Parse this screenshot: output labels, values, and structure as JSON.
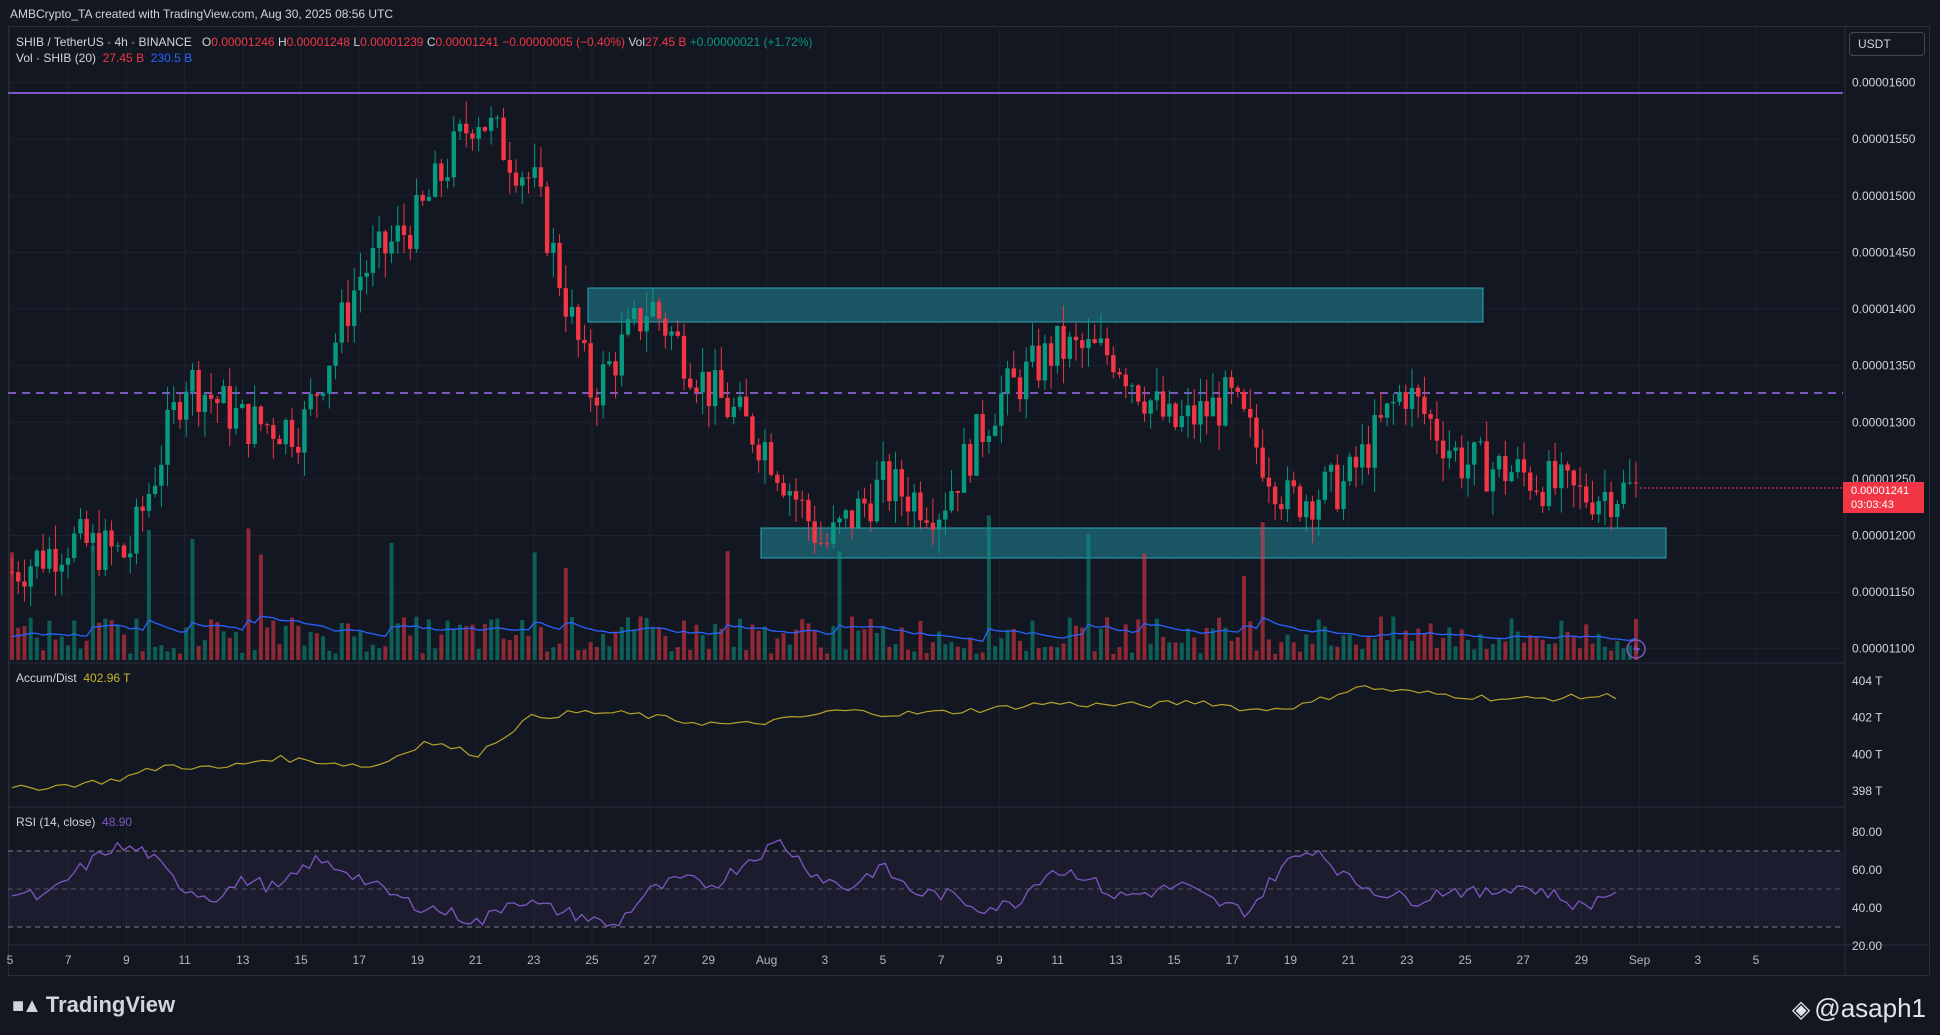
{
  "header": {
    "created_by": "AMBCrypto_TA created with TradingView.com, Aug 30, 2025 08:56 UTC"
  },
  "symbol": {
    "title": "SHIB / TetherUS · 4h · BINANCE",
    "o_label": "O",
    "o_value": "0.00001246",
    "h_label": "H",
    "h_value": "0.00001248",
    "l_label": "L",
    "l_value": "0.00001239",
    "c_label": "C",
    "c_value": "0.00001241",
    "change": "−0.00000005 (−0.40%)",
    "vol_label": "Vol",
    "vol_value": "27.45 B",
    "vol_change": "+0.00000021 (+1.72%)"
  },
  "volume_legend": {
    "label": "Vol · SHIB (20)",
    "value": "27.45 B",
    "ma_value": "230.5 B"
  },
  "ad_legend": {
    "label": "Accum/Dist",
    "value": "402.96 T"
  },
  "rsi_legend": {
    "label": "RSI (14, close)",
    "value": "48.90"
  },
  "currency_button": "USDT",
  "last_price": {
    "price": "0.00001241",
    "countdown": "03:03:43"
  },
  "price_axis": [
    "0.00001600",
    "0.00001550",
    "0.00001500",
    "0.00001450",
    "0.00001400",
    "0.00001350",
    "0.00001300",
    "0.00001250",
    "0.00001200",
    "0.00001150",
    "0.00001100"
  ],
  "ad_axis": [
    "404 T",
    "402 T",
    "400 T",
    "398 T"
  ],
  "rsi_axis": [
    "80.00",
    "60.00",
    "40.00",
    "20.00"
  ],
  "time_axis": [
    "5",
    "7",
    "9",
    "11",
    "13",
    "15",
    "17",
    "19",
    "21",
    "23",
    "25",
    "27",
    "29",
    "Aug",
    "3",
    "5",
    "7",
    "9",
    "11",
    "13",
    "15",
    "17",
    "19",
    "21",
    "23",
    "25",
    "27",
    "29",
    "Sep",
    "3",
    "5"
  ],
  "footer": {
    "brand": "TradingView",
    "watermark": "@asaph1"
  },
  "colors": {
    "bg": "#131722",
    "up": "#089981",
    "down": "#f23645",
    "zone": "#1e6b7a",
    "resistance": "#7e57c2",
    "ad_line": "#b5a22a",
    "rsi_line": "#7e57c2",
    "vol_ma": "#2962ff"
  },
  "chart_data": {
    "type": "candlestick",
    "symbol": "SHIB / TetherUS",
    "interval": "4h",
    "exchange": "BINANCE",
    "ylim": [
      1.09e-05,
      1.62e-05
    ],
    "resistance_solid": 1.595e-05,
    "resistance_dashed": 1.328e-05,
    "zones": [
      {
        "from": "Jul 25",
        "to": "Aug 24",
        "low": 1.392e-05,
        "high": 1.422e-05
      },
      {
        "from": "Jul 31",
        "to": "Aug 30",
        "low": 1.18e-05,
        "high": 1.206e-05
      }
    ],
    "price_path": [
      {
        "date": "Jul 5",
        "close": 1.168e-05
      },
      {
        "date": "Jul 7",
        "close": 1.195e-05
      },
      {
        "date": "Jul 9",
        "close": 1.182e-05
      },
      {
        "date": "Jul 11",
        "close": 1.34e-05
      },
      {
        "date": "Jul 13",
        "close": 1.3e-05
      },
      {
        "date": "Jul 15",
        "close": 1.295e-05
      },
      {
        "date": "Jul 17",
        "close": 1.43e-05
      },
      {
        "date": "Jul 19",
        "close": 1.48e-05
      },
      {
        "date": "Jul 21",
        "close": 1.575e-05
      },
      {
        "date": "Jul 23",
        "close": 1.51e-05
      },
      {
        "date": "Jul 25",
        "close": 1.325e-05
      },
      {
        "date": "Jul 27",
        "close": 1.405e-05
      },
      {
        "date": "Jul 29",
        "close": 1.33e-05
      },
      {
        "date": "Aug 1",
        "close": 1.28e-05
      },
      {
        "date": "Aug 3",
        "close": 1.19e-05
      },
      {
        "date": "Aug 5",
        "close": 1.245e-05
      },
      {
        "date": "Aug 7",
        "close": 1.225e-05
      },
      {
        "date": "Aug 9",
        "close": 1.32e-05
      },
      {
        "date": "Aug 11",
        "close": 1.365e-05
      },
      {
        "date": "Aug 13",
        "close": 1.36e-05
      },
      {
        "date": "Aug 15",
        "close": 1.295e-05
      },
      {
        "date": "Aug 17",
        "close": 1.32e-05
      },
      {
        "date": "Aug 19",
        "close": 1.23e-05
      },
      {
        "date": "Aug 21",
        "close": 1.245e-05
      },
      {
        "date": "Aug 23",
        "close": 1.33e-05
      },
      {
        "date": "Aug 25",
        "close": 1.265e-05
      },
      {
        "date": "Aug 27",
        "close": 1.255e-05
      },
      {
        "date": "Aug 29",
        "close": 1.235e-05
      },
      {
        "date": "Aug 30",
        "close": 1.241e-05
      }
    ],
    "accum_dist": {
      "ylim": [
        397.5,
        404.5
      ],
      "points": [
        398.1,
        398.3,
        398.6,
        399.4,
        399.2,
        399.8,
        399.6,
        399.3,
        400.7,
        400.0,
        402.0,
        402.3,
        402.2,
        401.8,
        401.6,
        401.9,
        402.4,
        402.2,
        402.3,
        402.5,
        402.8,
        402.7,
        402.7,
        402.9,
        402.4,
        402.7,
        403.7,
        403.4,
        403.2,
        403.0,
        403.1,
        403.2
      ]
    },
    "rsi": {
      "ylim": [
        20,
        85
      ],
      "bands": [
        30,
        50,
        70
      ],
      "points": [
        48,
        45,
        60,
        72,
        70,
        52,
        45,
        55,
        50,
        65,
        60,
        50,
        42,
        38,
        32,
        45,
        40,
        36,
        30,
        48,
        55,
        52,
        65,
        75,
        58,
        50,
        62,
        48,
        47,
        40,
        42,
        60,
        58,
        46,
        48,
        52,
        43,
        38,
        62,
        72,
        55,
        48,
        44,
        50,
        47,
        52,
        48,
        40,
        50
      ]
    }
  }
}
